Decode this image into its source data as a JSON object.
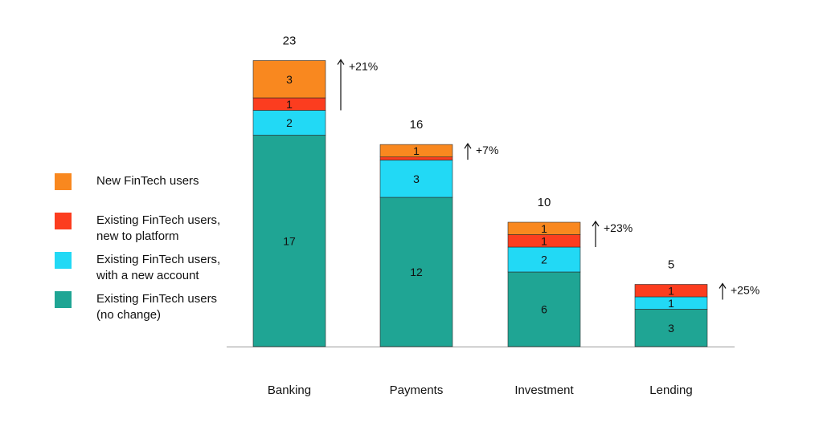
{
  "chart_data": {
    "type": "bar",
    "stacked": true,
    "categories": [
      "Banking",
      "Payments",
      "Investment",
      "Lending"
    ],
    "series": [
      {
        "name": "Existing FinTech users (no change)",
        "color": "#1fa594",
        "values": [
          17,
          12,
          6,
          3
        ]
      },
      {
        "name": "Existing FinTech users, with a new account",
        "color": "#22d9f5",
        "values": [
          2,
          3,
          2,
          1
        ]
      },
      {
        "name": "Existing FinTech users, new to platform",
        "color": "#fc3d1f",
        "values": [
          1,
          0.25,
          1,
          1
        ]
      },
      {
        "name": "New FinTech users",
        "color": "#f9881f",
        "values": [
          3,
          1,
          1,
          0
        ]
      }
    ],
    "segment_labels": [
      [
        "17",
        "2",
        "1",
        "3"
      ],
      [
        "12",
        "3",
        "",
        "1"
      ],
      [
        "6",
        "2",
        "1",
        "1"
      ],
      [
        "3",
        "1",
        "1",
        ""
      ]
    ],
    "totals": [
      "23",
      "16",
      "10",
      "5"
    ],
    "growth": [
      "+21%",
      "+7%",
      "+23%",
      "+25%"
    ],
    "legend_position": "left",
    "grid": false
  },
  "legend": {
    "items": [
      {
        "lines": [
          "New FinTech users"
        ],
        "color": "#f9881f"
      },
      {
        "lines": [
          "Existing FinTech users,",
          "new to platform"
        ],
        "color": "#fc3d1f"
      },
      {
        "lines": [
          "Existing FinTech users,",
          "with a new account"
        ],
        "color": "#22d9f5"
      },
      {
        "lines": [
          "Existing FinTech users",
          "(no change)"
        ],
        "color": "#1fa594"
      }
    ]
  }
}
